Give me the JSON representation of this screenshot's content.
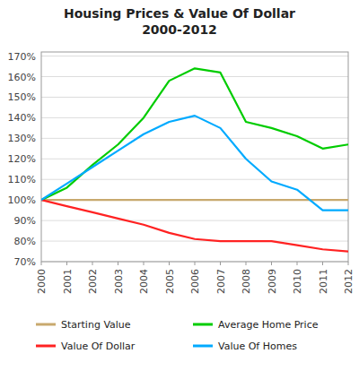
{
  "chart_data": {
    "type": "line",
    "title": "Housing Prices & Value Of Dollar\n2000-2012",
    "x": [
      2000,
      2001,
      2002,
      2003,
      2004,
      2005,
      2006,
      2007,
      2008,
      2009,
      2010,
      2011,
      2012
    ],
    "series": [
      {
        "name": "Starting Value",
        "color": "#c8a96e",
        "values": [
          100,
          100,
          100,
          100,
          100,
          100,
          100,
          100,
          100,
          100,
          100,
          100,
          100
        ]
      },
      {
        "name": "Average Home Price",
        "color": "#00cc00",
        "values": [
          100,
          106,
          117,
          127,
          140,
          158,
          164,
          162,
          138,
          135,
          131,
          125,
          127
        ]
      },
      {
        "name": "Value Of Dollar",
        "color": "#ff2222",
        "values": [
          100,
          97,
          94,
          91,
          88,
          84,
          81,
          80,
          80,
          80,
          78,
          76,
          75
        ]
      },
      {
        "name": "Value Of Homes",
        "color": "#00aaff",
        "values": [
          100,
          108,
          116,
          124,
          132,
          138,
          141,
          135,
          120,
          109,
          105,
          95,
          95
        ]
      }
    ],
    "xlim": [
      2000,
      2012
    ],
    "xticks": [
      2000,
      2001,
      2002,
      2003,
      2004,
      2005,
      2006,
      2007,
      2008,
      2009,
      2010,
      2011,
      2012
    ],
    "ylim": [
      70,
      172
    ],
    "yticks": [
      {
        "value": 70,
        "label": "70%"
      },
      {
        "value": 80,
        "label": "80%"
      },
      {
        "value": 90,
        "label": "90%"
      },
      {
        "value": 100,
        "label": "100%"
      },
      {
        "value": 110,
        "label": "110%"
      },
      {
        "value": 120,
        "label": "120%"
      },
      {
        "value": 130,
        "label": "130%"
      },
      {
        "value": 140,
        "label": "140%"
      },
      {
        "value": 150,
        "label": "150%"
      },
      {
        "value": 160,
        "label": "160%"
      },
      {
        "value": 170,
        "label": "170%"
      }
    ],
    "grid": true,
    "legend": "bottom"
  }
}
